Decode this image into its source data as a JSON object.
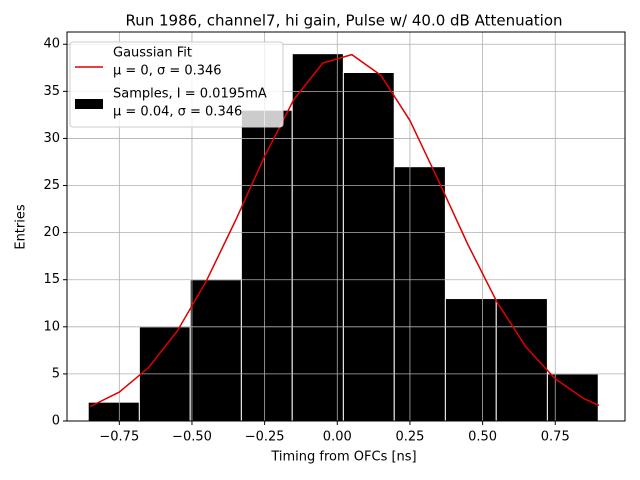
{
  "chart_data": {
    "type": "histogram",
    "title": "Run 1986, channel7, hi gain, Pulse w/ 40.0 dB Attenuation",
    "xlabel": "Timing from OFCs [ns]",
    "ylabel": "Entries",
    "bins": [
      -0.857,
      -0.681,
      -0.506,
      -0.33,
      -0.155,
      0.021,
      0.196,
      0.372,
      0.547,
      0.723,
      0.898
    ],
    "values": [
      2,
      10,
      15,
      33,
      39,
      37,
      27,
      13,
      13,
      5
    ],
    "color": "#000000",
    "edgecolor": "#ffffff",
    "hist_legend": [
      "Samples, I = 0.0195mA",
      "μ = 0.04, σ = 0.346"
    ],
    "fit": {
      "legend": [
        "Gaussian Fit",
        "μ = 0, σ = 0.346"
      ],
      "color": "#e00000",
      "x": [
        -0.85,
        -0.75,
        -0.65,
        -0.55,
        -0.45,
        -0.35,
        -0.25,
        -0.15,
        -0.05,
        0.05,
        0.15,
        0.25,
        0.35,
        0.45,
        0.55,
        0.65,
        0.75,
        0.85,
        0.9
      ],
      "values": [
        1.54,
        3.07,
        5.65,
        9.57,
        14.9,
        21.3,
        28.1,
        34.1,
        38.0,
        38.9,
        36.7,
        31.9,
        25.4,
        18.7,
        12.6,
        7.83,
        4.47,
        2.35,
        1.65
      ]
    },
    "xlim": [
      -0.93,
      0.99
    ],
    "ylim": [
      0,
      41.3
    ],
    "xticks": [
      {
        "value": -0.75,
        "label": "−0.75"
      },
      {
        "value": -0.5,
        "label": "−0.50"
      },
      {
        "value": -0.25,
        "label": "−0.25"
      },
      {
        "value": 0,
        "label": "0.00"
      },
      {
        "value": 0.25,
        "label": "0.25"
      },
      {
        "value": 0.5,
        "label": "0.50"
      },
      {
        "value": 0.75,
        "label": "0.75"
      }
    ],
    "yticks": [
      0,
      5,
      10,
      15,
      20,
      25,
      30,
      35,
      40
    ],
    "grid": true,
    "legend_loc": "upper left"
  }
}
